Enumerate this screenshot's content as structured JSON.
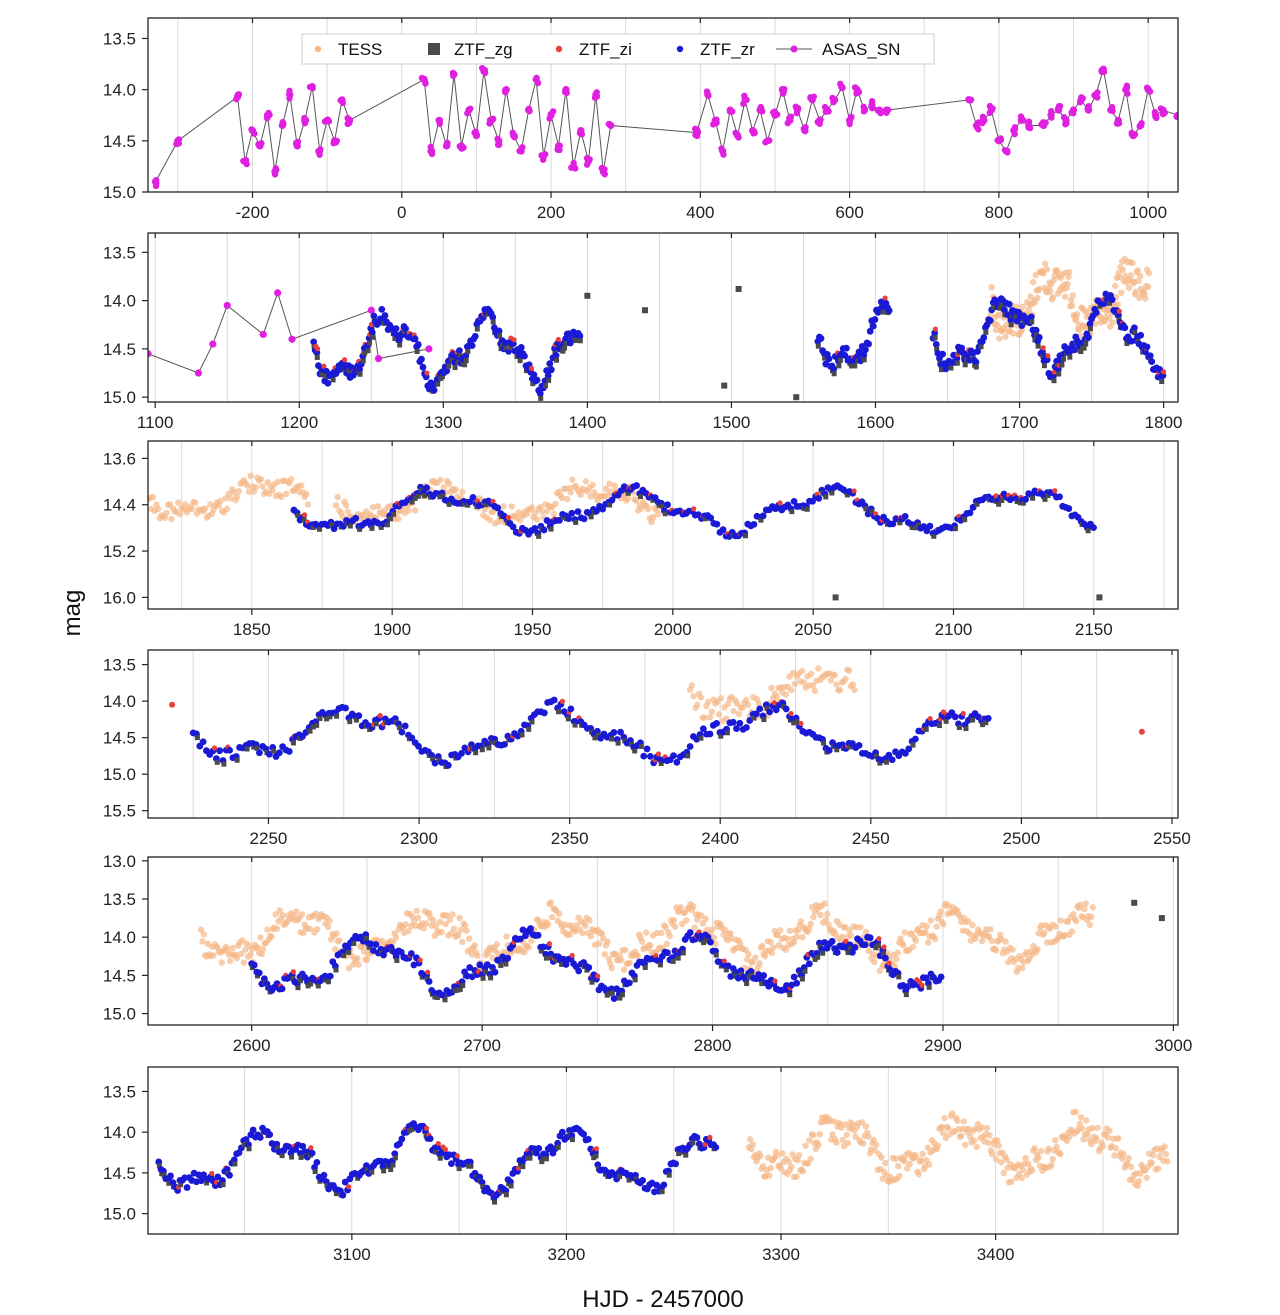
{
  "figure": {
    "xlabel": "HJD - 2457000",
    "ylabel": "mag"
  },
  "legend": {
    "placement": "top of first panel",
    "items": [
      {
        "label": "TESS",
        "color": "#f5b888",
        "marker": "dot"
      },
      {
        "label": "ZTF_zg",
        "color": "#4a4a4a",
        "marker": "square"
      },
      {
        "label": "ZTF_zi",
        "color": "#e8403a",
        "marker": "dot"
      },
      {
        "label": "ZTF_zr",
        "color": "#1a1ad6",
        "marker": "dot"
      },
      {
        "label": "ASAS_SN",
        "color": "#e020e0",
        "marker": "line-dot"
      }
    ]
  },
  "colors": {
    "TESS": "#f5b888",
    "ZTF_zg": "#4a4a4a",
    "ZTF_zi": "#e8403a",
    "ZTF_zr": "#1a1ad6",
    "ASAS_SN": "#e020e0",
    "ASAS_SN_line": "#555555"
  },
  "chart_data": [
    {
      "type": "scatter",
      "panel": 1,
      "xlim": [
        -340,
        1040
      ],
      "ylim": [
        15.0,
        13.3
      ],
      "xticks": [
        -200,
        0,
        200,
        400,
        600,
        800,
        1000
      ],
      "yticks": [
        13.5,
        14.0,
        14.5,
        15.0
      ],
      "y_inverted": true,
      "series": [
        {
          "name": "ASAS_SN",
          "segments": [
            [
              [
                -330,
                14.9
              ],
              [
                -300,
                14.5
              ],
              [
                -220,
                14.07
              ],
              [
                -210,
                14.7
              ],
              [
                -200,
                14.4
              ],
              [
                -190,
                14.55
              ],
              [
                -180,
                14.25
              ],
              [
                -170,
                14.8
              ],
              [
                -160,
                14.35
              ],
              [
                -150,
                14.05
              ],
              [
                -140,
                14.55
              ],
              [
                -130,
                14.3
              ],
              [
                -120,
                13.97
              ],
              [
                -110,
                14.6
              ],
              [
                -100,
                14.3
              ],
              [
                -90,
                14.5
              ],
              [
                -80,
                14.1
              ],
              [
                -70,
                14.3
              ]
            ],
            [
              [
                -70,
                14.3
              ],
              [
                30,
                13.9
              ],
              [
                40,
                14.6
              ],
              [
                50,
                14.3
              ],
              [
                60,
                14.55
              ],
              [
                70,
                13.85
              ],
              [
                80,
                14.55
              ],
              [
                90,
                14.2
              ],
              [
                100,
                14.45
              ],
              [
                110,
                13.82
              ],
              [
                120,
                14.3
              ],
              [
                130,
                14.5
              ],
              [
                140,
                14.0
              ],
              [
                150,
                14.45
              ],
              [
                160,
                14.6
              ],
              [
                170,
                14.2
              ],
              [
                180,
                13.9
              ],
              [
                190,
                14.65
              ],
              [
                200,
                14.25
              ],
              [
                210,
                14.55
              ],
              [
                220,
                14.0
              ],
              [
                230,
                14.75
              ],
              [
                240,
                14.4
              ],
              [
                250,
                14.7
              ],
              [
                260,
                14.05
              ],
              [
                270,
                14.8
              ],
              [
                280,
                14.35
              ],
              [
                395,
                14.42
              ]
            ],
            [
              [
                395,
                14.42
              ],
              [
                410,
                14.05
              ],
              [
                420,
                14.3
              ],
              [
                430,
                14.6
              ],
              [
                440,
                14.2
              ],
              [
                450,
                14.45
              ],
              [
                460,
                14.1
              ],
              [
                470,
                14.4
              ],
              [
                480,
                14.2
              ],
              [
                490,
                14.5
              ],
              [
                500,
                14.25
              ],
              [
                510,
                14.0
              ],
              [
                520,
                14.3
              ],
              [
                530,
                14.2
              ],
              [
                540,
                14.4
              ],
              [
                550,
                14.1
              ],
              [
                560,
                14.3
              ],
              [
                570,
                14.2
              ],
              [
                580,
                14.1
              ],
              [
                590,
                13.98
              ],
              [
                600,
                14.3
              ],
              [
                610,
                14.0
              ],
              [
                620,
                14.2
              ],
              [
                630,
                14.15
              ],
              [
                640,
                14.2
              ],
              [
                650,
                14.2
              ],
              [
                760,
                14.1
              ],
              [
                770,
                14.35
              ],
              [
                780,
                14.3
              ],
              [
                790,
                14.2
              ],
              [
                800,
                14.5
              ],
              [
                810,
                14.6
              ],
              [
                820,
                14.4
              ],
              [
                830,
                14.3
              ],
              [
                840,
                14.35
              ],
              [
                860,
                14.35
              ],
              [
                870,
                14.25
              ],
              [
                880,
                14.2
              ],
              [
                890,
                14.3
              ],
              [
                900,
                14.2
              ],
              [
                910,
                14.1
              ],
              [
                920,
                14.2
              ],
              [
                930,
                14.05
              ],
              [
                940,
                13.8
              ],
              [
                950,
                14.2
              ],
              [
                960,
                14.3
              ],
              [
                970,
                14.0
              ],
              [
                980,
                14.45
              ],
              [
                990,
                14.35
              ],
              [
                1000,
                14.0
              ],
              [
                1010,
                14.25
              ],
              [
                1020,
                14.2
              ],
              [
                1040,
                14.25
              ]
            ]
          ]
        }
      ]
    },
    {
      "type": "scatter",
      "panel": 2,
      "xlim": [
        1095,
        1810
      ],
      "ylim": [
        15.05,
        13.3
      ],
      "xticks": [
        1100,
        1200,
        1300,
        1400,
        1500,
        1600,
        1700,
        1800
      ],
      "yticks": [
        13.5,
        14.0,
        14.5,
        15.0
      ],
      "y_inverted": true,
      "series": [
        {
          "name": "ASAS_SN",
          "points": [
            [
              1095,
              14.55
            ],
            [
              1130,
              14.75
            ],
            [
              1140,
              14.45
            ],
            [
              1150,
              14.05
            ],
            [
              1175,
              14.35
            ],
            [
              1185,
              13.92
            ],
            [
              1195,
              14.4
            ],
            [
              1250,
              14.1
            ],
            [
              1255,
              14.6
            ],
            [
              1290,
              14.5
            ]
          ]
        },
        {
          "name": "TESS",
          "bands": [
            [
              1680,
              1790,
              14.0,
              0.35
            ]
          ]
        },
        {
          "name": "ZTF_zr",
          "segments": [
            [
              1210,
              1395,
              14.5
            ],
            [
              1560,
              1610,
              14.35
            ],
            [
              1640,
              1800,
              14.35
            ]
          ]
        },
        {
          "name": "ZTF_zg",
          "isolated": [
            [
              1400,
              13.95
            ],
            [
              1505,
              13.88
            ],
            [
              1495,
              14.88
            ],
            [
              1545,
              15.0
            ],
            [
              1440,
              14.1
            ]
          ]
        }
      ]
    },
    {
      "type": "scatter",
      "panel": 3,
      "xlim": [
        1813,
        2180
      ],
      "ylim": [
        16.2,
        13.3
      ],
      "xticks": [
        1850,
        1900,
        1950,
        2000,
        2050,
        2100,
        2150
      ],
      "yticks": [
        13.6,
        14.4,
        15.2,
        16.0
      ],
      "y_inverted": true,
      "series": [
        {
          "name": "TESS",
          "bands": [
            [
              1813,
              1870,
              14.3,
              0.3
            ],
            [
              1880,
              1925,
              14.35,
              0.3
            ],
            [
              1930,
              1995,
              14.35,
              0.3
            ]
          ]
        },
        {
          "name": "ZTF_zr",
          "segments": [
            [
              1865,
              2150,
              14.5
            ]
          ]
        },
        {
          "name": "ZTF_zg",
          "isolated": [
            [
              2058,
              16.0
            ],
            [
              2152,
              16.0
            ]
          ]
        }
      ]
    },
    {
      "type": "scatter",
      "panel": 4,
      "xlim": [
        2210,
        2552
      ],
      "ylim": [
        15.6,
        13.3
      ],
      "xticks": [
        2250,
        2300,
        2350,
        2400,
        2450,
        2500,
        2550
      ],
      "yticks": [
        13.5,
        14.0,
        14.5,
        15.0,
        15.5
      ],
      "y_inverted": true,
      "series": [
        {
          "name": "TESS",
          "bands": [
            [
              2390,
              2445,
              13.9,
              0.35
            ]
          ]
        },
        {
          "name": "ZTF_zr",
          "segments": [
            [
              2225,
              2490,
              14.45
            ]
          ]
        },
        {
          "name": "ZTF_zi",
          "isolated": [
            [
              2218,
              14.05
            ],
            [
              2540,
              14.42
            ]
          ]
        }
      ]
    },
    {
      "type": "scatter",
      "panel": 5,
      "xlim": [
        2555,
        3002
      ],
      "ylim": [
        15.15,
        12.95
      ],
      "xticks": [
        2600,
        2700,
        2800,
        2900,
        3000
      ],
      "yticks": [
        13.0,
        13.5,
        14.0,
        14.5,
        15.0
      ],
      "y_inverted": true,
      "series": [
        {
          "name": "TESS",
          "bands": [
            [
              2578,
              2965,
              14.0,
              0.3
            ]
          ]
        },
        {
          "name": "ZTF_zr",
          "segments": [
            [
              2600,
              2900,
              14.35
            ]
          ]
        },
        {
          "name": "ZTF_zg",
          "isolated": [
            [
              2983,
              13.55
            ],
            [
              2995,
              13.75
            ]
          ]
        }
      ]
    },
    {
      "type": "scatter",
      "panel": 6,
      "xlim": [
        3005,
        3485
      ],
      "ylim": [
        15.25,
        13.2
      ],
      "xticks": [
        3100,
        3200,
        3300,
        3400
      ],
      "yticks": [
        13.5,
        14.0,
        14.5,
        15.0
      ],
      "y_inverted": true,
      "series": [
        {
          "name": "ZTF_zr",
          "segments": [
            [
              3010,
              3270,
              14.35
            ]
          ]
        },
        {
          "name": "TESS",
          "bands": [
            [
              3285,
              3480,
              14.2,
              0.3
            ]
          ]
        }
      ]
    }
  ]
}
